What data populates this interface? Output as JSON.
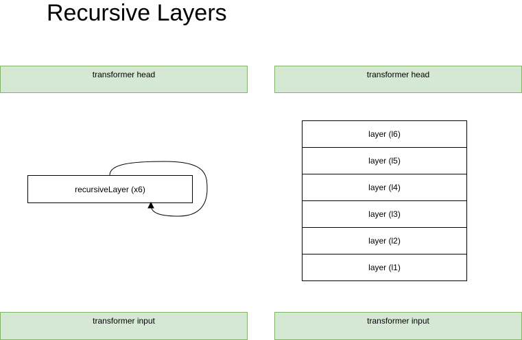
{
  "title": "Recursive Layers",
  "left_diagram": {
    "head_label": "transformer head",
    "recursive_label": "recursiveLayer (x6)",
    "input_label": "transformer input"
  },
  "right_diagram": {
    "head_label": "transformer head",
    "layers": [
      "layer (l6)",
      "layer (l5)",
      "layer (l4)",
      "layer (l3)",
      "layer (l2)",
      "layer (l1)"
    ],
    "input_label": "transformer input"
  },
  "colors": {
    "green_fill": "#d5e8d4",
    "green_stroke": "#82b366",
    "box_stroke": "#000000"
  }
}
